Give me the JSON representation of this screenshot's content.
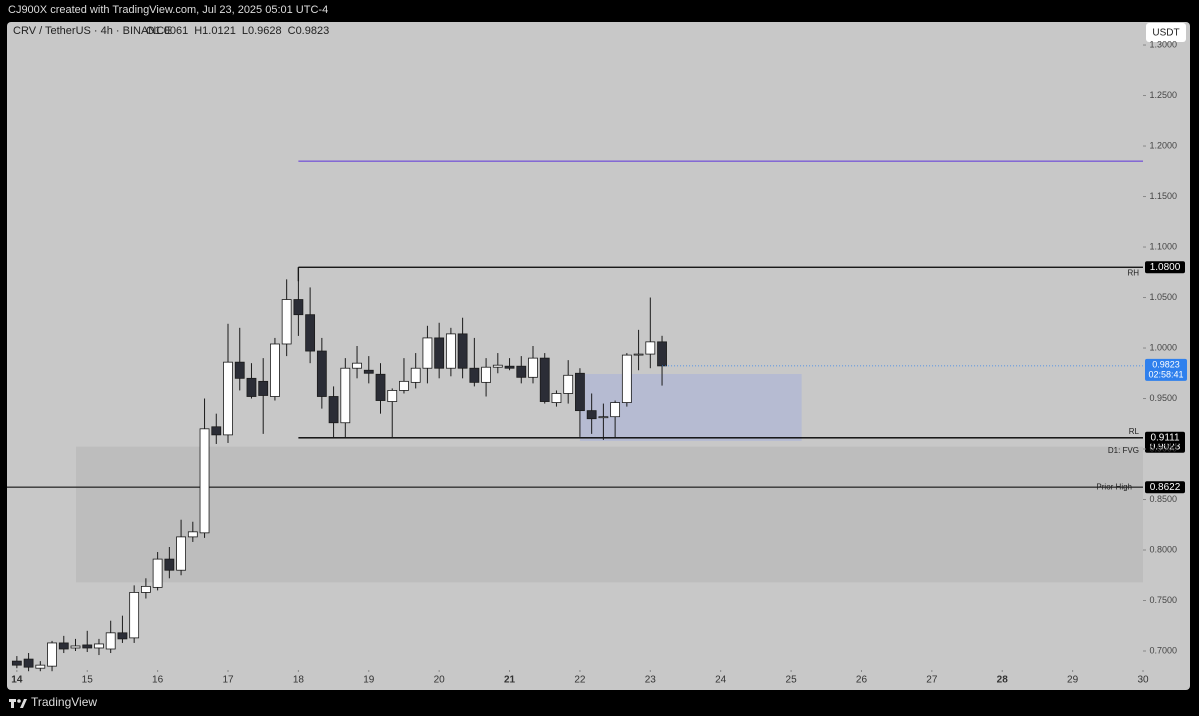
{
  "header": {
    "attribution": "CJ900X created with TradingView.com, Jul 23, 2025 05:01 UTC-4",
    "currency_button": "USDT",
    "footer_brand": "TradingView"
  },
  "chart_data": {
    "type": "candlestick",
    "title": "CRV / TetherUS · 4h · BINANCE",
    "ohlc_legend": [
      {
        "label": "O",
        "value": 1.0061
      },
      {
        "label": "H",
        "value": 1.0121
      },
      {
        "label": "L",
        "value": 0.9628
      },
      {
        "label": "C",
        "value": 0.9823
      }
    ],
    "x": [
      14,
      14.1667,
      14.3333,
      14.5,
      14.6667,
      14.8333,
      15,
      15.1667,
      15.3333,
      15.5,
      15.6667,
      15.8333,
      16,
      16.1667,
      16.3333,
      16.5,
      16.6667,
      16.8333,
      17,
      17.1667,
      17.3333,
      17.5,
      17.6667,
      17.8333,
      18,
      18.1667,
      18.3333,
      18.5,
      18.6667,
      18.8333,
      19,
      19.1667,
      19.3333,
      19.5,
      19.6667,
      19.8333,
      20,
      20.1667,
      20.3333,
      20.5,
      20.6667,
      20.8333,
      21,
      21.1667,
      21.3333,
      21.5,
      21.6667,
      21.8333,
      22,
      22.1667,
      22.3333,
      22.5,
      22.6667,
      22.8333,
      23,
      23.1667
    ],
    "open": [
      0.69,
      0.692,
      0.683,
      0.685,
      0.708,
      0.703,
      0.706,
      0.703,
      0.702,
      0.718,
      0.713,
      0.758,
      0.763,
      0.791,
      0.78,
      0.813,
      0.817,
      0.922,
      0.914,
      0.986,
      0.97,
      0.967,
      0.952,
      1.004,
      1.048,
      1.033,
      0.997,
      0.952,
      0.926,
      0.98,
      0.978,
      0.974,
      0.947,
      0.958,
      0.966,
      0.98,
      1.01,
      0.98,
      1.014,
      0.98,
      0.966,
      0.981,
      0.982,
      0.982,
      0.971,
      0.99,
      0.946,
      0.955,
      0.975,
      0.938,
      0.931,
      0.932,
      0.946,
      0.993,
      0.994,
      1.0061
    ],
    "high": [
      0.695,
      0.698,
      0.69,
      0.71,
      0.715,
      0.712,
      0.72,
      0.712,
      0.73,
      0.735,
      0.765,
      0.772,
      0.798,
      0.803,
      0.83,
      0.828,
      0.95,
      0.935,
      1.024,
      1.02,
      0.985,
      0.99,
      1.01,
      1.068,
      1.08,
      1.06,
      1.01,
      0.962,
      0.99,
      1.002,
      0.992,
      0.985,
      0.96,
      0.99,
      0.995,
      1.022,
      1.025,
      1.02,
      1.03,
      1.01,
      0.99,
      0.995,
      0.99,
      0.992,
      1.002,
      0.995,
      0.958,
      0.988,
      0.98,
      0.955,
      0.945,
      0.948,
      0.995,
      1.018,
      1.05,
      1.0121
    ],
    "low": [
      0.683,
      0.68,
      0.68,
      0.68,
      0.698,
      0.7,
      0.699,
      0.696,
      0.698,
      0.708,
      0.708,
      0.752,
      0.76,
      0.772,
      0.775,
      0.808,
      0.812,
      0.905,
      0.906,
      0.958,
      0.95,
      0.915,
      0.948,
      0.992,
      1.012,
      0.985,
      0.94,
      0.911,
      0.911,
      0.97,
      0.965,
      0.935,
      0.911,
      0.955,
      0.96,
      0.965,
      0.97,
      0.972,
      0.97,
      0.962,
      0.952,
      0.975,
      0.978,
      0.965,
      0.965,
      0.945,
      0.942,
      0.945,
      0.912,
      0.915,
      0.909,
      0.911,
      0.942,
      0.978,
      0.98,
      0.9628
    ],
    "close": [
      0.686,
      0.684,
      0.686,
      0.708,
      0.702,
      0.705,
      0.703,
      0.707,
      0.718,
      0.712,
      0.758,
      0.764,
      0.791,
      0.78,
      0.813,
      0.818,
      0.92,
      0.914,
      0.986,
      0.97,
      0.952,
      0.953,
      1.004,
      1.048,
      1.033,
      0.997,
      0.952,
      0.926,
      0.98,
      0.985,
      0.975,
      0.948,
      0.958,
      0.967,
      0.98,
      1.01,
      0.98,
      1.014,
      0.98,
      0.966,
      0.981,
      0.983,
      0.98,
      0.971,
      0.99,
      0.947,
      0.955,
      0.973,
      0.938,
      0.93,
      0.932,
      0.946,
      0.993,
      0.994,
      1.0061,
      0.9823
    ],
    "up_color": "#ffffff",
    "down_color": "#2b2d36",
    "edge_color": "#1a1a1a",
    "xlim": [
      13.86,
      30.0
    ],
    "ylim": [
      0.6812,
      1.3228
    ],
    "xticks": [
      14,
      15,
      16,
      17,
      18,
      19,
      20,
      21,
      22,
      23,
      24,
      25,
      26,
      27,
      28,
      29,
      30
    ],
    "bold_xticks": [
      14,
      21,
      28
    ],
    "yticks": [
      {
        "value": 0.7,
        "label": "0.7000"
      },
      {
        "value": 0.75,
        "label": "0.7500"
      },
      {
        "value": 0.8,
        "label": "0.8000"
      },
      {
        "value": 0.85,
        "label": "0.8500"
      },
      {
        "value": 0.9,
        "label": "0.9000"
      },
      {
        "value": 0.95,
        "label": "0.9500"
      },
      {
        "value": 1.0,
        "label": "1.0000"
      },
      {
        "value": 1.05,
        "label": "1.0500"
      },
      {
        "value": 1.1,
        "label": "1.1000"
      },
      {
        "value": 1.15,
        "label": "1.1500"
      },
      {
        "value": 1.2,
        "label": "1.2000"
      },
      {
        "value": 1.25,
        "label": "1.2500"
      },
      {
        "value": 1.3,
        "label": "1.3000"
      }
    ],
    "zones": [
      {
        "name": "D1: FVG",
        "top": 0.9023,
        "bottom": 0.768,
        "from": 14.84,
        "color": "#bdbdbd",
        "badge": "0.9023"
      },
      {
        "top": 0.9743,
        "bottom": 0.908,
        "from": 22,
        "to": 25.15,
        "color": "#b6bbd2"
      }
    ],
    "levels": [
      {
        "value": 1.185,
        "from": 18,
        "color": "#7b5cd6"
      },
      {
        "name": "RH",
        "value": 1.08,
        "from": 18,
        "color": "#000000",
        "badge": "1.0800",
        "label_pos": "below",
        "tick": true
      },
      {
        "name": "RL",
        "value": 0.9111,
        "from": 18,
        "color": "#000000",
        "badge": "0.9111",
        "label_pos": "above"
      },
      {
        "name": "Prior High",
        "value": 0.8622,
        "color": "#333333",
        "badge": "0.8622",
        "label_pos": "on"
      }
    ],
    "last_price": {
      "value": 0.9823,
      "label": "0.9823",
      "countdown": "02:58:41",
      "color": "#2f80ed"
    }
  }
}
